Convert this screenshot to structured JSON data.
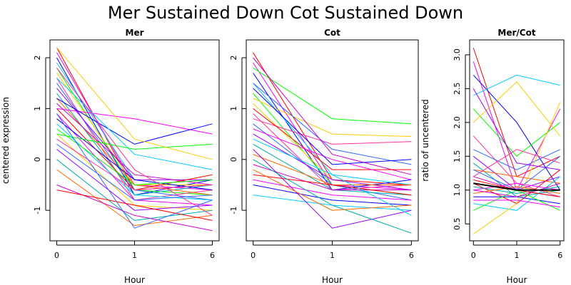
{
  "figure": {
    "title": "Mer Sustained Down Cot Sustained Down"
  },
  "palette": [
    "#ff0000",
    "#ff00ff",
    "#0000ff",
    "#00ccff",
    "#00ff00",
    "#ffcc00",
    "#ff3399",
    "#3366ff",
    "#9900ff",
    "#00aaaa",
    "#ff6600",
    "#cc00cc"
  ],
  "chart_data": [
    {
      "type": "line",
      "title": "Mer",
      "xlabel": "Hour",
      "ylabel": "centered expression",
      "x": [
        "0",
        "1",
        "6"
      ],
      "ylim": [
        -1.6,
        2.35
      ],
      "yticks": [
        -1,
        0,
        1,
        2
      ],
      "series": [
        {
          "values": [
            2.2,
            -0.6,
            -0.5
          ]
        },
        {
          "values": [
            2.1,
            -0.5,
            -0.6
          ]
        },
        {
          "values": [
            2.0,
            -0.7,
            -0.4
          ]
        },
        {
          "values": [
            1.9,
            -0.4,
            -0.6
          ]
        },
        {
          "values": [
            1.8,
            -0.6,
            -0.7
          ]
        },
        {
          "values": [
            1.7,
            -0.5,
            -0.5
          ]
        },
        {
          "values": [
            1.6,
            -0.8,
            -0.6
          ]
        },
        {
          "values": [
            1.5,
            -0.6,
            -0.8
          ]
        },
        {
          "values": [
            1.4,
            -0.4,
            -0.4
          ]
        },
        {
          "values": [
            1.3,
            -0.7,
            -0.5
          ]
        },
        {
          "values": [
            1.2,
            -0.5,
            -0.7
          ]
        },
        {
          "values": [
            1.1,
            -0.3,
            -0.5
          ]
        },
        {
          "values": [
            1.0,
            -0.6,
            -0.3
          ]
        },
        {
          "values": [
            0.9,
            -0.8,
            -0.9
          ]
        },
        {
          "values": [
            0.8,
            -0.4,
            -0.6
          ]
        },
        {
          "values": [
            0.7,
            -0.7,
            -0.8
          ]
        },
        {
          "values": [
            0.6,
            -0.5,
            -0.4
          ]
        },
        {
          "values": [
            0.5,
            -0.9,
            -1.0
          ]
        },
        {
          "values": [
            0.4,
            -0.6,
            -0.5
          ]
        },
        {
          "values": [
            0.3,
            -0.8,
            -0.7
          ]
        },
        {
          "values": [
            0.2,
            -1.0,
            -0.9
          ]
        },
        {
          "values": [
            0.0,
            -1.2,
            -1.0
          ]
        },
        {
          "values": [
            -0.2,
            -1.3,
            -1.1
          ]
        },
        {
          "values": [
            -0.5,
            -1.1,
            -1.4
          ]
        },
        {
          "values": [
            -0.6,
            -0.9,
            -1.2
          ]
        },
        {
          "values": [
            1.0,
            0.8,
            0.5
          ]
        },
        {
          "values": [
            1.2,
            0.3,
            0.7
          ]
        },
        {
          "values": [
            1.6,
            0.1,
            -0.2
          ]
        },
        {
          "values": [
            0.5,
            0.2,
            0.3
          ]
        },
        {
          "values": [
            2.2,
            0.4,
            0.0
          ]
        },
        {
          "values": [
            1.8,
            -0.2,
            -1.1
          ]
        },
        {
          "values": [
            0.9,
            -1.35,
            -0.8
          ]
        }
      ]
    },
    {
      "type": "line",
      "title": "Cot",
      "xlabel": "Hour",
      "ylabel": "",
      "x": [
        "0",
        "1",
        "6"
      ],
      "ylim": [
        -1.6,
        2.35
      ],
      "yticks": [
        -1,
        0,
        1,
        2
      ],
      "series": [
        {
          "values": [
            2.1,
            -0.4,
            -0.5
          ]
        },
        {
          "values": [
            1.9,
            -0.5,
            -0.6
          ]
        },
        {
          "values": [
            1.7,
            -0.6,
            -0.4
          ]
        },
        {
          "values": [
            1.5,
            -0.3,
            -0.5
          ]
        },
        {
          "values": [
            1.3,
            -0.5,
            -0.7
          ]
        },
        {
          "values": [
            1.1,
            -0.4,
            -0.6
          ]
        },
        {
          "values": [
            0.9,
            -0.6,
            -0.5
          ]
        },
        {
          "values": [
            0.7,
            -0.5,
            -0.8
          ]
        },
        {
          "values": [
            0.5,
            -0.4,
            -0.6
          ]
        },
        {
          "values": [
            0.3,
            -0.6,
            -0.7
          ]
        },
        {
          "values": [
            0.1,
            -0.5,
            -0.5
          ]
        },
        {
          "values": [
            -0.1,
            -0.6,
            -0.6
          ]
        },
        {
          "values": [
            -0.3,
            -0.5,
            -0.7
          ]
        },
        {
          "values": [
            -0.4,
            -0.7,
            -0.8
          ]
        },
        {
          "values": [
            -0.5,
            -0.8,
            -0.9
          ]
        },
        {
          "values": [
            -0.7,
            -0.9,
            -1.0
          ]
        },
        {
          "values": [
            1.8,
            0.8,
            0.7
          ]
        },
        {
          "values": [
            1.2,
            0.5,
            0.45
          ]
        },
        {
          "values": [
            0.8,
            0.3,
            0.35
          ]
        },
        {
          "values": [
            1.5,
            0.2,
            -0.1
          ]
        },
        {
          "values": [
            0.2,
            -1.35,
            -1.0
          ]
        },
        {
          "values": [
            0.0,
            -0.9,
            -1.45
          ]
        },
        {
          "values": [
            -0.2,
            -1.0,
            -0.9
          ]
        },
        {
          "values": [
            2.0,
            0.1,
            -0.3
          ]
        },
        {
          "values": [
            1.0,
            -0.2,
            -0.2
          ]
        },
        {
          "values": [
            0.6,
            0.0,
            -0.4
          ]
        },
        {
          "values": [
            1.4,
            -0.1,
            0.0
          ]
        },
        {
          "values": [
            0.4,
            -0.3,
            -1.1
          ]
        }
      ]
    },
    {
      "type": "line",
      "title": "Mer/Cot",
      "xlabel": "Hour",
      "ylabel": "ratio of uncentered",
      "x": [
        "0",
        "1",
        "6"
      ],
      "ylim": [
        0.25,
        3.22
      ],
      "yticks": [
        0.5,
        1.0,
        1.5,
        2.0,
        2.5,
        3.0
      ],
      "series": [
        {
          "values": [
            3.1,
            1.2,
            1.5
          ]
        },
        {
          "values": [
            2.9,
            1.0,
            2.2
          ]
        },
        {
          "values": [
            2.7,
            2.0,
            1.0
          ]
        },
        {
          "values": [
            2.4,
            2.7,
            2.55
          ]
        },
        {
          "values": [
            2.2,
            1.5,
            2.0
          ]
        },
        {
          "values": [
            2.0,
            2.6,
            1.8
          ]
        },
        {
          "values": [
            1.8,
            1.1,
            0.9
          ]
        },
        {
          "values": [
            1.6,
            1.3,
            1.6
          ]
        },
        {
          "values": [
            1.5,
            1.0,
            1.2
          ]
        },
        {
          "values": [
            1.4,
            0.9,
            1.0
          ]
        },
        {
          "values": [
            1.3,
            1.2,
            1.1
          ]
        },
        {
          "values": [
            1.2,
            1.0,
            0.9
          ]
        },
        {
          "values": [
            1.1,
            0.8,
            1.3
          ]
        },
        {
          "values": [
            1.0,
            1.1,
            1.0
          ]
        },
        {
          "values": [
            0.9,
            0.9,
            0.8
          ]
        },
        {
          "values": [
            0.8,
            0.7,
            1.2
          ]
        },
        {
          "values": [
            0.7,
            1.0,
            0.7
          ]
        },
        {
          "values": [
            0.35,
            0.8,
            2.3
          ]
        },
        {
          "values": [
            1.2,
            1.6,
            1.4
          ]
        },
        {
          "values": [
            1.3,
            1.0,
            1.5
          ]
        },
        {
          "values": [
            2.5,
            1.4,
            1.3
          ]
        },
        {
          "values": [
            1.05,
            0.95,
            1.05
          ]
        },
        {
          "values": [
            0.95,
            1.05,
            0.95
          ]
        },
        {
          "values": [
            1.0,
            0.9,
            1.1
          ]
        },
        {
          "values": [
            1.15,
            1.0,
            0.9
          ]
        },
        {
          "values": [
            0.85,
            0.85,
            0.75
          ]
        }
      ],
      "mean_line": {
        "values": [
          1.1,
          1.0,
          1.0
        ]
      }
    }
  ]
}
